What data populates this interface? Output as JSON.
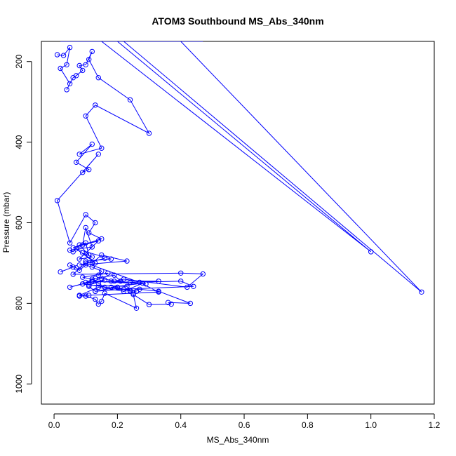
{
  "chart_data": {
    "type": "line",
    "title": "ATOM3 Southbound MS_Abs_340nm",
    "xlabel": "MS_Abs_340nm",
    "ylabel": "Pressure (mbar)",
    "xlim": [
      -0.04,
      1.2
    ],
    "ylim": [
      1050,
      150
    ],
    "y_reversed": true,
    "xticks": [
      0.0,
      0.2,
      0.4,
      0.6,
      0.8,
      1.0,
      1.2
    ],
    "yticks": [
      200,
      400,
      600,
      800,
      1000
    ],
    "xtick_labels": [
      "0.0",
      "0.2",
      "0.4",
      "0.6",
      "0.8",
      "1.0",
      "1.2"
    ],
    "ytick_labels": [
      "200",
      "400",
      "600",
      "800",
      "1000"
    ],
    "grid": false,
    "legend": "none",
    "series_color": "#0000ff",
    "series": [
      {
        "x": [
          0.2,
          1.0,
          0.15,
          0.06,
          0.14,
          0.09,
          0.29,
          0.12,
          0.07,
          0.21,
          0.05,
          0.27,
          0.11,
          0.47,
          0.14,
          0.08,
          0.4,
          1.16,
          0.22,
          0.04,
          0.18,
          0.1,
          0.3,
          0.08,
          0.24,
          0.15,
          0.43,
          0.12,
          0.33,
          0.06,
          0.22,
          0.02,
          0.13,
          0.09,
          0.26,
          0.11,
          0.37,
          0.14,
          0.05,
          0.16,
          0.43,
          0.08,
          0.2,
          0.12,
          0.28,
          0.1,
          0.24,
          0.06,
          0.15,
          0.3,
          0.1,
          0.37,
          0.14
        ],
        "y": [
          150,
          672,
          150,
          150,
          150,
          150,
          150,
          150,
          150,
          150,
          150,
          150,
          150,
          150,
          150,
          150,
          150,
          772,
          150,
          150,
          150,
          150,
          150,
          150,
          150,
          150,
          150,
          150,
          150,
          150,
          150,
          150,
          150,
          150,
          150,
          150,
          150,
          150,
          150,
          150,
          150,
          150,
          150,
          150,
          150,
          150,
          150,
          150,
          150,
          150,
          150,
          150,
          150
        ]
      },
      {
        "x": [
          0.01,
          0.03,
          0.05,
          0.04,
          0.02,
          0.05,
          0.04,
          0.06,
          0.07,
          0.09,
          0.08,
          0.1,
          0.12,
          0.11,
          0.14,
          0.24,
          0.3,
          0.13,
          0.1,
          0.15,
          0.08,
          0.12,
          0.07,
          0.11,
          0.09,
          0.14,
          0.01,
          0.05,
          0.1,
          0.13,
          0.11,
          0.15,
          0.09,
          0.1,
          0.12,
          0.05,
          0.06,
          0.08,
          0.11,
          0.1,
          0.06,
          0.14,
          0.08,
          0.12,
          0.09,
          0.13,
          0.07,
          0.18,
          0.1,
          0.12,
          0.15,
          0.23,
          0.08,
          0.16
        ],
        "y": [
          183,
          185,
          165,
          208,
          217,
          255,
          270,
          240,
          235,
          222,
          210,
          208,
          175,
          195,
          240,
          295,
          378,
          308,
          335,
          415,
          430,
          405,
          450,
          468,
          475,
          430,
          545,
          650,
          580,
          600,
          625,
          640,
          655,
          612,
          660,
          668,
          672,
          655,
          680,
          650,
          662,
          645,
          690,
          685,
          675,
          700,
          665,
          690,
          695,
          700,
          680,
          695,
          705,
          688
        ]
      },
      {
        "x": [
          0.02,
          0.06,
          0.05,
          0.07,
          0.08,
          0.1,
          0.12,
          0.15,
          0.14,
          0.17,
          0.09,
          0.12,
          0.19,
          0.21,
          0.1,
          0.13,
          0.09,
          0.16,
          0.11,
          0.23,
          0.24,
          0.18,
          0.28,
          0.22,
          0.14,
          0.08,
          0.11,
          0.25,
          0.33,
          0.27,
          0.1,
          0.06,
          0.4,
          0.47,
          0.42,
          0.22,
          0.19,
          0.15,
          0.12,
          0.05,
          0.09,
          0.26,
          0.16,
          0.14,
          0.12,
          0.29,
          0.18,
          0.33,
          0.24,
          0.4,
          0.44,
          0.22,
          0.13,
          0.11
        ],
        "y": [
          722,
          710,
          705,
          712,
          718,
          705,
          710,
          720,
          730,
          725,
          735,
          740,
          730,
          745,
          748,
          738,
          752,
          742,
          755,
          758,
          768,
          760,
          750,
          770,
          760,
          780,
          780,
          775,
          772,
          748,
          700,
          728,
          725,
          727,
          760,
          740,
          745,
          738,
          745,
          760,
          752,
          770,
          760,
          750,
          745,
          752,
          745,
          745,
          748,
          745,
          758,
          765,
          770,
          758
        ]
      },
      {
        "x": [
          0.08,
          0.1,
          0.13,
          0.14,
          0.15,
          0.16,
          0.26,
          0.25,
          0.3,
          0.37,
          0.36,
          0.43,
          0.33,
          0.27,
          0.24,
          0.2,
          0.13
        ],
        "y": [
          782,
          782,
          790,
          802,
          795,
          775,
          812,
          778,
          803,
          802,
          798,
          800,
          770,
          765,
          770,
          760,
          770
        ]
      }
    ]
  }
}
